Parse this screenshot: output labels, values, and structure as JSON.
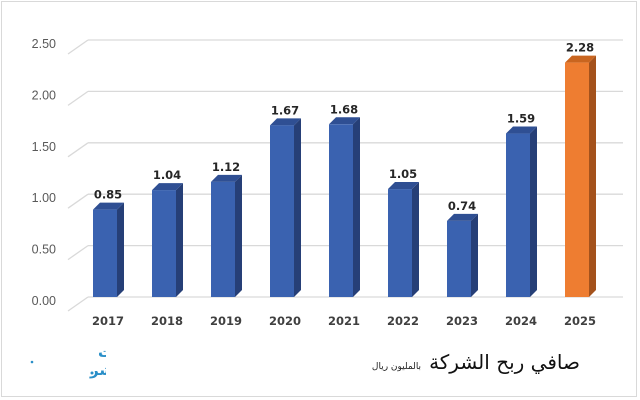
{
  "chart_data": {
    "type": "bar",
    "title": "صافي ربح الشركة",
    "subtitle": "بالمليون ريال",
    "xlabel": "",
    "ylabel": "",
    "categories": [
      "2017",
      "2018",
      "2019",
      "2020",
      "2021",
      "2022",
      "2023",
      "2024",
      "2025"
    ],
    "values": [
      0.85,
      1.04,
      1.12,
      1.67,
      1.68,
      1.05,
      0.74,
      1.59,
      2.28
    ],
    "value_labels": [
      "0.85",
      "1.04",
      "1.12",
      "1.67",
      "1.68",
      "1.05",
      "0.74",
      "1.59",
      "2.28"
    ],
    "ylim": [
      0,
      2.5
    ],
    "yticks": [
      "0.00",
      "0.50",
      "1.00",
      "1.50",
      "2.00",
      "2.50"
    ],
    "grid": true,
    "legend": "none",
    "style": "3d-column",
    "highlight_index": 8
  },
  "colors": {
    "bar_front": "#3a62b0",
    "bar_side": "#263f77",
    "bar_top": "#2f4f93",
    "highlight_front": "#ee7d31",
    "highlight_side": "#a4521c",
    "highlight_top": "#c9651f",
    "grid": "#d9d9d9",
    "tick_text": "#595959",
    "label_text": "#262626",
    "logo": "#2a8fc8"
  },
  "logo": {
    "line1": "معلومات",
    "line2": "مباشر"
  },
  "title": {
    "main": "صافي ربح الشركة",
    "sub": "بالمليون ريال"
  }
}
